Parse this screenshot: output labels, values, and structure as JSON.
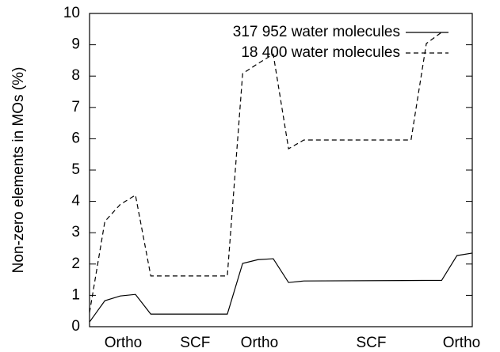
{
  "chart_data": {
    "type": "line",
    "ylabel": "Non-zero elements in MOs (%)",
    "xlim": [
      0,
      25
    ],
    "ylim": [
      0,
      10
    ],
    "yticks": [
      0,
      1,
      2,
      3,
      4,
      5,
      6,
      7,
      8,
      9,
      10
    ],
    "xticks": [
      {
        "value": 2.2,
        "label": "Ortho"
      },
      {
        "value": 6.9,
        "label": "SCF"
      },
      {
        "value": 11.1,
        "label": "Ortho"
      },
      {
        "value": 18.4,
        "label": "SCF"
      },
      {
        "value": 24.3,
        "label": "Ortho"
      }
    ],
    "legend": "upper right",
    "series": [
      {
        "name": "317 952 water molecules",
        "color": "#000000",
        "style": "solid",
        "x": [
          0,
          1,
          2,
          3,
          4,
          9,
          10,
          11,
          12,
          13,
          14,
          23,
          24,
          25
        ],
        "values": [
          0.15,
          0.83,
          0.98,
          1.03,
          0.4,
          0.4,
          2.02,
          2.14,
          2.17,
          1.41,
          1.46,
          1.48,
          2.27,
          2.35
        ]
      },
      {
        "name": "18 400  water molecules",
        "color": "#000000",
        "style": "dashed",
        "x": [
          0,
          1,
          2,
          3,
          4,
          9,
          10,
          11,
          12,
          13,
          14,
          21,
          22,
          23
        ],
        "values": [
          0.45,
          3.36,
          3.9,
          4.2,
          1.62,
          1.62,
          8.08,
          8.4,
          8.7,
          5.68,
          5.96,
          5.96,
          9.04,
          9.4
        ]
      }
    ]
  }
}
